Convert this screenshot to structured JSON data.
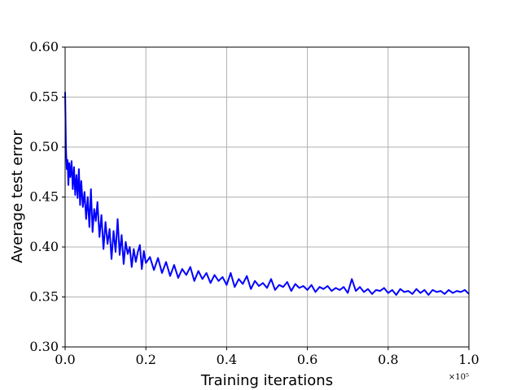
{
  "chart_data": {
    "type": "line",
    "title": "",
    "xlabel": "Training iterations",
    "ylabel": "Average test error",
    "x_scale_label": "×10⁵",
    "xlim": [
      0.0,
      1.0
    ],
    "ylim": [
      0.3,
      0.6
    ],
    "xticks": [
      "0.0",
      "0.2",
      "0.4",
      "0.6",
      "0.8",
      "1.0"
    ],
    "yticks": [
      "0.30",
      "0.35",
      "0.40",
      "0.45",
      "0.50",
      "0.55",
      "0.60"
    ],
    "grid": true,
    "line_color": "#0000ff",
    "series": [
      {
        "x": [
          0.0,
          0.002,
          0.004,
          0.006,
          0.008,
          0.01,
          0.013,
          0.016,
          0.019,
          0.022,
          0.025,
          0.028,
          0.031,
          0.034,
          0.037,
          0.04,
          0.044,
          0.048,
          0.052,
          0.056,
          0.06,
          0.064,
          0.068,
          0.072,
          0.076,
          0.08,
          0.085,
          0.09,
          0.095,
          0.1,
          0.105,
          0.11,
          0.115,
          0.12,
          0.125,
          0.13,
          0.135,
          0.14,
          0.145,
          0.15,
          0.155,
          0.16,
          0.165,
          0.17,
          0.175,
          0.18,
          0.185,
          0.19,
          0.195,
          0.2,
          0.21,
          0.22,
          0.23,
          0.24,
          0.25,
          0.26,
          0.27,
          0.28,
          0.29,
          0.3,
          0.31,
          0.32,
          0.33,
          0.34,
          0.35,
          0.36,
          0.37,
          0.38,
          0.39,
          0.4,
          0.41,
          0.42,
          0.43,
          0.44,
          0.45,
          0.46,
          0.47,
          0.48,
          0.49,
          0.5,
          0.51,
          0.52,
          0.53,
          0.54,
          0.55,
          0.56,
          0.57,
          0.58,
          0.59,
          0.6,
          0.61,
          0.62,
          0.63,
          0.64,
          0.65,
          0.66,
          0.67,
          0.68,
          0.69,
          0.7,
          0.71,
          0.72,
          0.73,
          0.74,
          0.75,
          0.76,
          0.77,
          0.78,
          0.79,
          0.8,
          0.81,
          0.82,
          0.83,
          0.84,
          0.85,
          0.86,
          0.87,
          0.88,
          0.89,
          0.9,
          0.91,
          0.92,
          0.93,
          0.94,
          0.95,
          0.96,
          0.97,
          0.98,
          0.99,
          1.0
        ],
        "y": [
          0.555,
          0.5,
          0.478,
          0.487,
          0.462,
          0.484,
          0.47,
          0.486,
          0.458,
          0.48,
          0.452,
          0.472,
          0.449,
          0.478,
          0.442,
          0.466,
          0.44,
          0.455,
          0.428,
          0.45,
          0.42,
          0.458,
          0.415,
          0.438,
          0.426,
          0.445,
          0.41,
          0.432,
          0.398,
          0.425,
          0.403,
          0.418,
          0.388,
          0.416,
          0.395,
          0.428,
          0.392,
          0.412,
          0.383,
          0.405,
          0.393,
          0.4,
          0.38,
          0.398,
          0.385,
          0.395,
          0.402,
          0.378,
          0.396,
          0.384,
          0.39,
          0.377,
          0.389,
          0.374,
          0.385,
          0.371,
          0.382,
          0.369,
          0.378,
          0.372,
          0.38,
          0.366,
          0.376,
          0.368,
          0.374,
          0.364,
          0.372,
          0.366,
          0.37,
          0.362,
          0.374,
          0.36,
          0.368,
          0.363,
          0.371,
          0.358,
          0.366,
          0.361,
          0.364,
          0.359,
          0.368,
          0.357,
          0.362,
          0.36,
          0.365,
          0.356,
          0.363,
          0.359,
          0.361,
          0.357,
          0.362,
          0.355,
          0.36,
          0.358,
          0.361,
          0.356,
          0.359,
          0.357,
          0.36,
          0.354,
          0.368,
          0.356,
          0.36,
          0.355,
          0.358,
          0.353,
          0.357,
          0.356,
          0.359,
          0.354,
          0.357,
          0.352,
          0.358,
          0.355,
          0.356,
          0.353,
          0.358,
          0.354,
          0.357,
          0.352,
          0.357,
          0.355,
          0.356,
          0.353,
          0.357,
          0.354,
          0.356,
          0.355,
          0.357,
          0.353
        ]
      }
    ]
  }
}
